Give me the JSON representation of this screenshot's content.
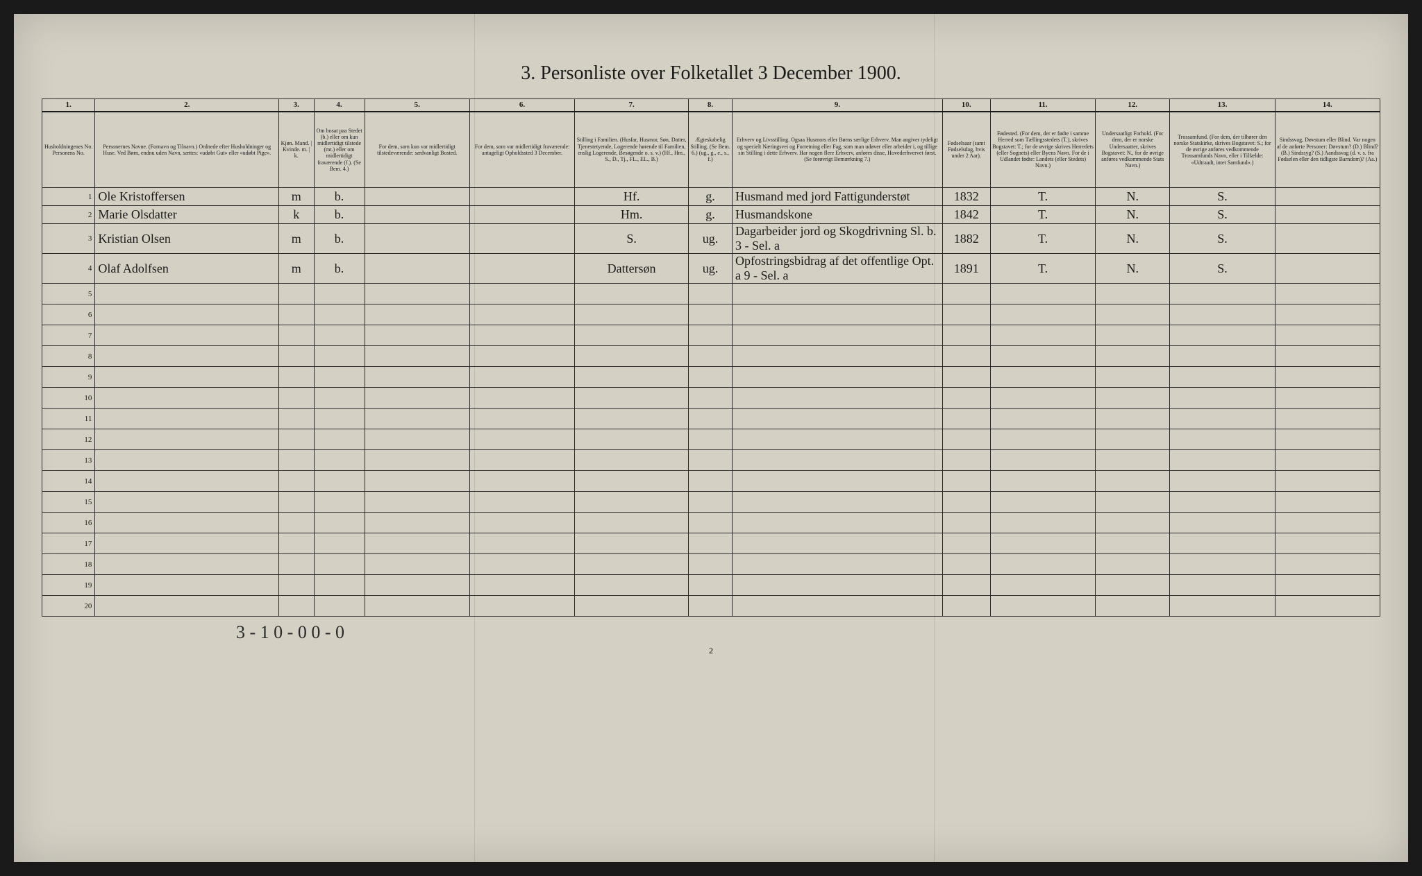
{
  "title": "3. Personliste over Folketallet 3 December 1900.",
  "columns": {
    "nums": [
      "1.",
      "2.",
      "3.",
      "4.",
      "5.",
      "6.",
      "7.",
      "8.",
      "9.",
      "10.",
      "11.",
      "12.",
      "13.",
      "14."
    ],
    "headers": [
      "Husholdningenes No.\nPersonens No.",
      "Personernes Navne.\n(Fornavn og Tilnavn.)\nOrdnede efter Husholdninger og Huse.\nVed Børn, endnu uden Navn, sættes: «udøbt Gut» eller «udøbt Pige».",
      "Kjøn.\nMand. | Kvinde.\nm. | k.",
      "Om bosat paa Stedet (b.) eller om kun midlertidigt tilstede (mt.) eller om midlertidigt fraværende (f.).\n(Se Bem. 4.)",
      "For dem, som kun var midlertidigt tilstedeværende:\nsædvanligt Bosted.",
      "For dem, som var midlertidigt fraværende:\nantageligt Opholdssted 3 December.",
      "Stilling i Familien.\n(Husfar, Husmor, Søn, Datter, Tjenestetyende, Logerende hørende til Familien, enslig Logerende, Besøgende o. s. v.)\n(Hf., Hm., S., D., Tj., FL., EL., B.)",
      "Ægteskabelig Stilling.\n(Se Bem. 6.)\n(ug., g., e., s., f.)",
      "Erhverv og Livsstilling.\nOgsaa Husmors eller Børns særlige Erhverv.\nMan angiver tydeligt og specielt Næringsvei og Forretning eller Fag, som man udøver eller arbeider i, og tillige sin Stilling i dette Erhverv.\nHar nogen flere Erhverv, anføres disse, Hovederhvervet først.\n(Se forøvrigt Bemærkning 7.)",
      "Fødselsaar (samt Fødselsdag, hvis under 2 Aar).",
      "Fødested.\n(For dem, der er fødte i samme Herred som Tællingsstedets (T.), skrives Bogstavet: T.; for de øvrige skrives Herredets (eller Sognets) eller Byens Navn.\nFor de i Udlandet fødte: Landets (eller Stedets) Navn.)",
      "Undersaatligt Forhold.\n(For dem, der er norske Undersaatter, skrives Bogstavet: N., for de øvrige anføres vedkommende Stats Navn.)",
      "Trossamfund.\n(For dem, der tilhører den norske Statskirke, skrives Bogstavet: S.; for de øvrige anføres vedkommende Trossamfunds Navn, eller i Tilfælde: «Udtraadt, intet Samfund».)",
      "Sindssvag, Døvstum eller Blind.\nVar nogen af de anførte Personer:\nDøvstum? (D.)\nBlind? (B.)\nSindssyg? (S.)\nAandssvag (d. v. s. fra Fødselen eller den tidligste Barndom)? (Aa.)"
    ]
  },
  "rows": [
    {
      "n": "1",
      "name": "Ole Kristoffersen",
      "sex": "m",
      "res": "b.",
      "c5": "",
      "c6": "",
      "fam": "Hf.",
      "civ": "g.",
      "occ": "Husmand med jord Fattigunderstøt",
      "yr": "1832",
      "bp": "T.",
      "nat": "N.",
      "rel": "S.",
      "dis": ""
    },
    {
      "n": "2",
      "name": "Marie Olsdatter",
      "sex": "k",
      "res": "b.",
      "c5": "",
      "c6": "",
      "fam": "Hm.",
      "civ": "g.",
      "occ": "Husmandskone",
      "yr": "1842",
      "bp": "T.",
      "nat": "N.",
      "rel": "S.",
      "dis": ""
    },
    {
      "n": "3",
      "name": "Kristian Olsen",
      "sex": "m",
      "res": "b.",
      "c5": "",
      "c6": "",
      "fam": "S.",
      "civ": "ug.",
      "occ": "Dagarbeider jord og Skogdrivning  Sl. b. 3 - Sel. a",
      "yr": "1882",
      "bp": "T.",
      "nat": "N.",
      "rel": "S.",
      "dis": ""
    },
    {
      "n": "4",
      "name": "Olaf Adolfsen",
      "sex": "m",
      "res": "b.",
      "c5": "",
      "c6": "",
      "fam": "Dattersøn",
      "civ": "ug.",
      "occ": "Opfostringsbidrag af det offentlige  Opt. a 9 - Sel. a",
      "yr": "1891",
      "bp": "T.",
      "nat": "N.",
      "rel": "S.",
      "dis": ""
    }
  ],
  "empty_row_labels": [
    "5",
    "6",
    "7",
    "8",
    "9",
    "10",
    "11",
    "12",
    "13",
    "14",
    "15",
    "16",
    "17",
    "18",
    "19",
    "20"
  ],
  "bottom_note": "3 - 1   0 - 0   0 - 0",
  "page_num": "2",
  "colors": {
    "paper": "#d4d0c4",
    "ink": "#1a1a1a",
    "bg": "#1a1a1a"
  }
}
